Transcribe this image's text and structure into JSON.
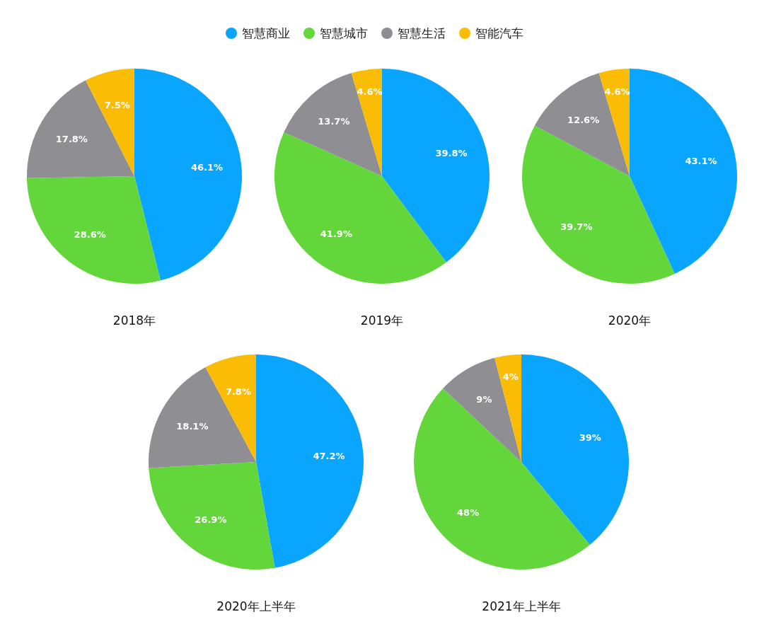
{
  "chart_data": [
    {
      "type": "pie",
      "title": "2018年",
      "legend": "top",
      "categories": [
        "智慧商业",
        "智慧城市",
        "智慧生活",
        "智能汽车"
      ],
      "values": [
        46.1,
        28.6,
        17.8,
        7.5
      ],
      "colors": [
        "#0aa5ff",
        "#62d63a",
        "#8e8e93",
        "#fbbc05"
      ],
      "data_labels": true,
      "value_labels": [
        "46.1%",
        "28.6%",
        "17.8%",
        "7.5%"
      ]
    },
    {
      "type": "pie",
      "title": "2019年",
      "values": [
        39.8,
        41.9,
        13.7,
        4.6
      ],
      "colors": [
        "#0aa5ff",
        "#62d63a",
        "#8e8e93",
        "#fbbc05"
      ],
      "data_labels": true,
      "value_labels": [
        "39.8%",
        "41.9%",
        "13.7%",
        "4.6%"
      ]
    },
    {
      "type": "pie",
      "title": "2020年",
      "values": [
        43.1,
        39.7,
        12.6,
        4.6
      ],
      "colors": [
        "#0aa5ff",
        "#62d63a",
        "#8e8e93",
        "#fbbc05"
      ],
      "data_labels": true,
      "value_labels": [
        "43.1%",
        "39.7%",
        "12.6%",
        "4.6%"
      ]
    },
    {
      "type": "pie",
      "title": "2020年上半年",
      "values": [
        47.2,
        26.9,
        18.1,
        7.8
      ],
      "colors": [
        "#0aa5ff",
        "#62d63a",
        "#8e8e93",
        "#fbbc05"
      ],
      "data_labels": true,
      "value_labels": [
        "47.2%",
        "26.9%",
        "18.1%",
        "7.8%"
      ]
    },
    {
      "type": "pie",
      "title": "2021年上半年",
      "values": [
        39,
        48,
        9,
        4
      ],
      "colors": [
        "#0aa5ff",
        "#62d63a",
        "#8e8e93",
        "#fbbc05"
      ],
      "data_labels": true,
      "value_labels": [
        "39%",
        "48%",
        "9%",
        "4%"
      ]
    }
  ]
}
